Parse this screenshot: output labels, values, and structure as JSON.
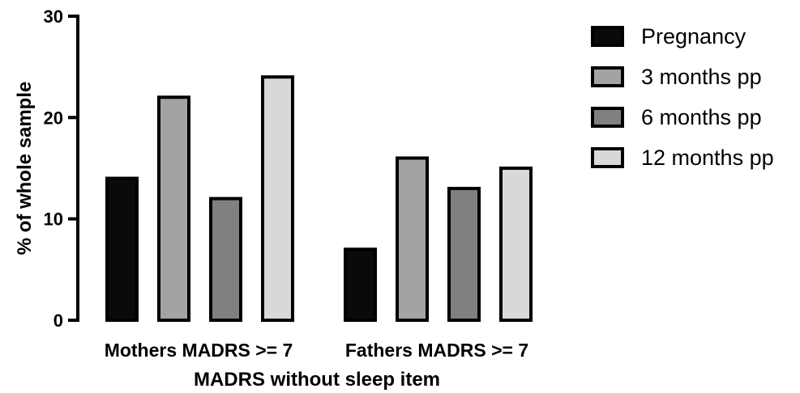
{
  "chart_data": {
    "type": "bar",
    "categories": [
      "Mothers MADRS >= 7",
      "Fathers MADRS >= 7"
    ],
    "series": [
      {
        "name": "Pregnancy",
        "values": [
          14,
          7
        ],
        "color": "#0a0a0a"
      },
      {
        "name": "3 months pp",
        "values": [
          22,
          16
        ],
        "color": "#a3a3a3"
      },
      {
        "name": "6 months pp",
        "values": [
          12,
          13
        ],
        "color": "#808080"
      },
      {
        "name": "12 months pp",
        "values": [
          24,
          15
        ],
        "color": "#d8d8d8"
      }
    ],
    "xlabel": "MADRS without sleep item",
    "ylabel": "% of whole sample",
    "ylim": [
      0,
      30
    ],
    "yticks": [
      0,
      10,
      20,
      30
    ],
    "grid": false,
    "legend_position": "top-right"
  }
}
